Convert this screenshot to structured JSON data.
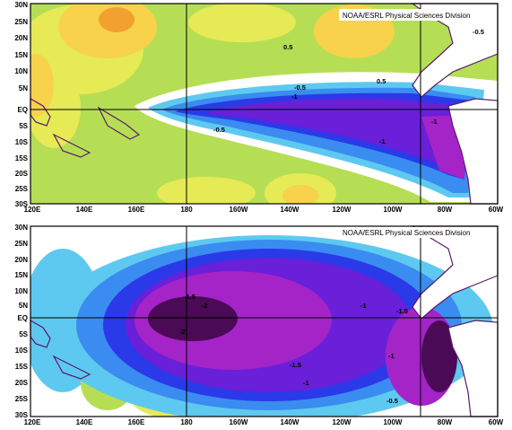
{
  "colors": {
    "strong_warm": "#f2a030",
    "warm": "#f7d24a",
    "mild_warm": "#e6ea55",
    "slight_warm": "#b6de55",
    "near_zero": "#ffffff",
    "slight_cool": "#5ec9f0",
    "cool": "#3a8cf0",
    "strong_cool": "#2a3ae8",
    "very_cool": "#6a1fd8",
    "extreme_cool": "#a424c8",
    "darkest": "#4a0a55",
    "coast": "#5a1a6a",
    "frame": "#000000"
  },
  "panels": [
    {
      "name": "top",
      "credit": "NOAA/ESRL Physical Sciences Division",
      "lat_labels": [
        "30N",
        "25N",
        "20N",
        "15N",
        "10N",
        "5N",
        "EQ",
        "5S",
        "10S",
        "15S",
        "20S",
        "25S",
        "30S"
      ],
      "lon_labels": [
        "120E",
        "140E",
        "160E",
        "180",
        "160W",
        "140W",
        "120W",
        "100W",
        "80W",
        "60W"
      ],
      "contour_labels": [
        "-0.5",
        "-1",
        "-0.5",
        "-1",
        "-1",
        "0.5",
        "0.5",
        "-0.5"
      ]
    },
    {
      "name": "bottom",
      "credit": "NOAA/ESRL Physical Sciences Division",
      "lat_labels": [
        "30N",
        "25N",
        "20N",
        "15N",
        "10N",
        "5N",
        "EQ",
        "5S",
        "10S",
        "15S",
        "20S",
        "25S",
        "30S"
      ],
      "lon_labels": [
        "120E",
        "140E",
        "160E",
        "180",
        "160W",
        "140W",
        "120W",
        "100W",
        "80W",
        "60W"
      ],
      "contour_labels": [
        "-1.5",
        "-2",
        "-2",
        "-1",
        "-1.5",
        "-1.5",
        "-1",
        "-1",
        "-0.5"
      ]
    }
  ]
}
